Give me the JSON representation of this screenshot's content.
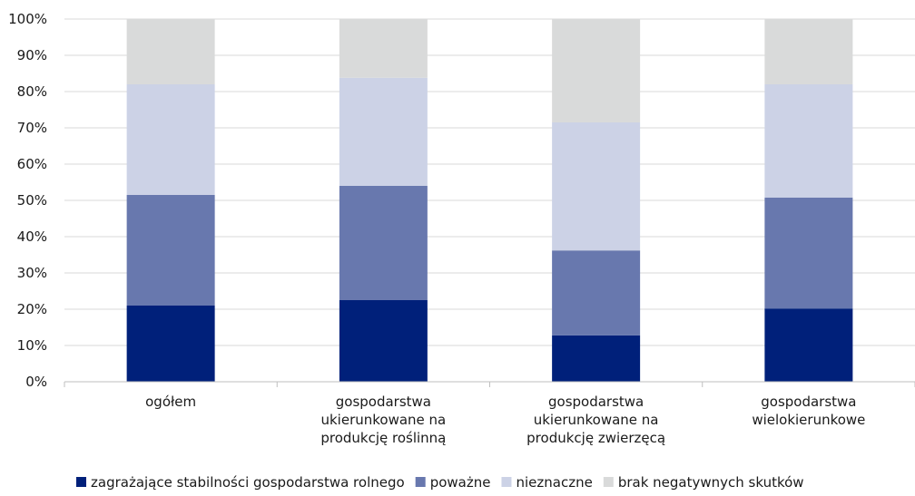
{
  "chart_data": {
    "type": "bar",
    "stacked": true,
    "percent": true,
    "categories": [
      [
        "ogółem"
      ],
      [
        "gospodarstwa",
        "ukierunkowane na",
        "produkcję roślinną"
      ],
      [
        "gospodarstwa",
        "ukierunkowane na",
        "produkcję zwierzęcą"
      ],
      [
        "gospodarstwa",
        "wielokierunkowe"
      ]
    ],
    "series": [
      {
        "name": "zagrażające stabilności gospodarstwa rolnego",
        "color": "#00207a",
        "values": [
          21,
          22.5,
          12.8,
          20.2
        ]
      },
      {
        "name": "poważne",
        "color": "#6878ae",
        "values": [
          30.5,
          31.5,
          23.4,
          30.6
        ]
      },
      {
        "name": "nieznaczne",
        "color": "#ccd2e6",
        "values": [
          30.5,
          29.8,
          35.3,
          31.2
        ]
      },
      {
        "name": "brak negatywnych skutków",
        "color": "#d9dada",
        "values": [
          18,
          16.2,
          28.5,
          18
        ]
      }
    ],
    "yticks": [
      "0%",
      "10%",
      "20%",
      "30%",
      "40%",
      "50%",
      "60%",
      "70%",
      "80%",
      "90%",
      "100%"
    ],
    "ylim": [
      0,
      100
    ],
    "grid": true,
    "legend_position": "bottom"
  }
}
